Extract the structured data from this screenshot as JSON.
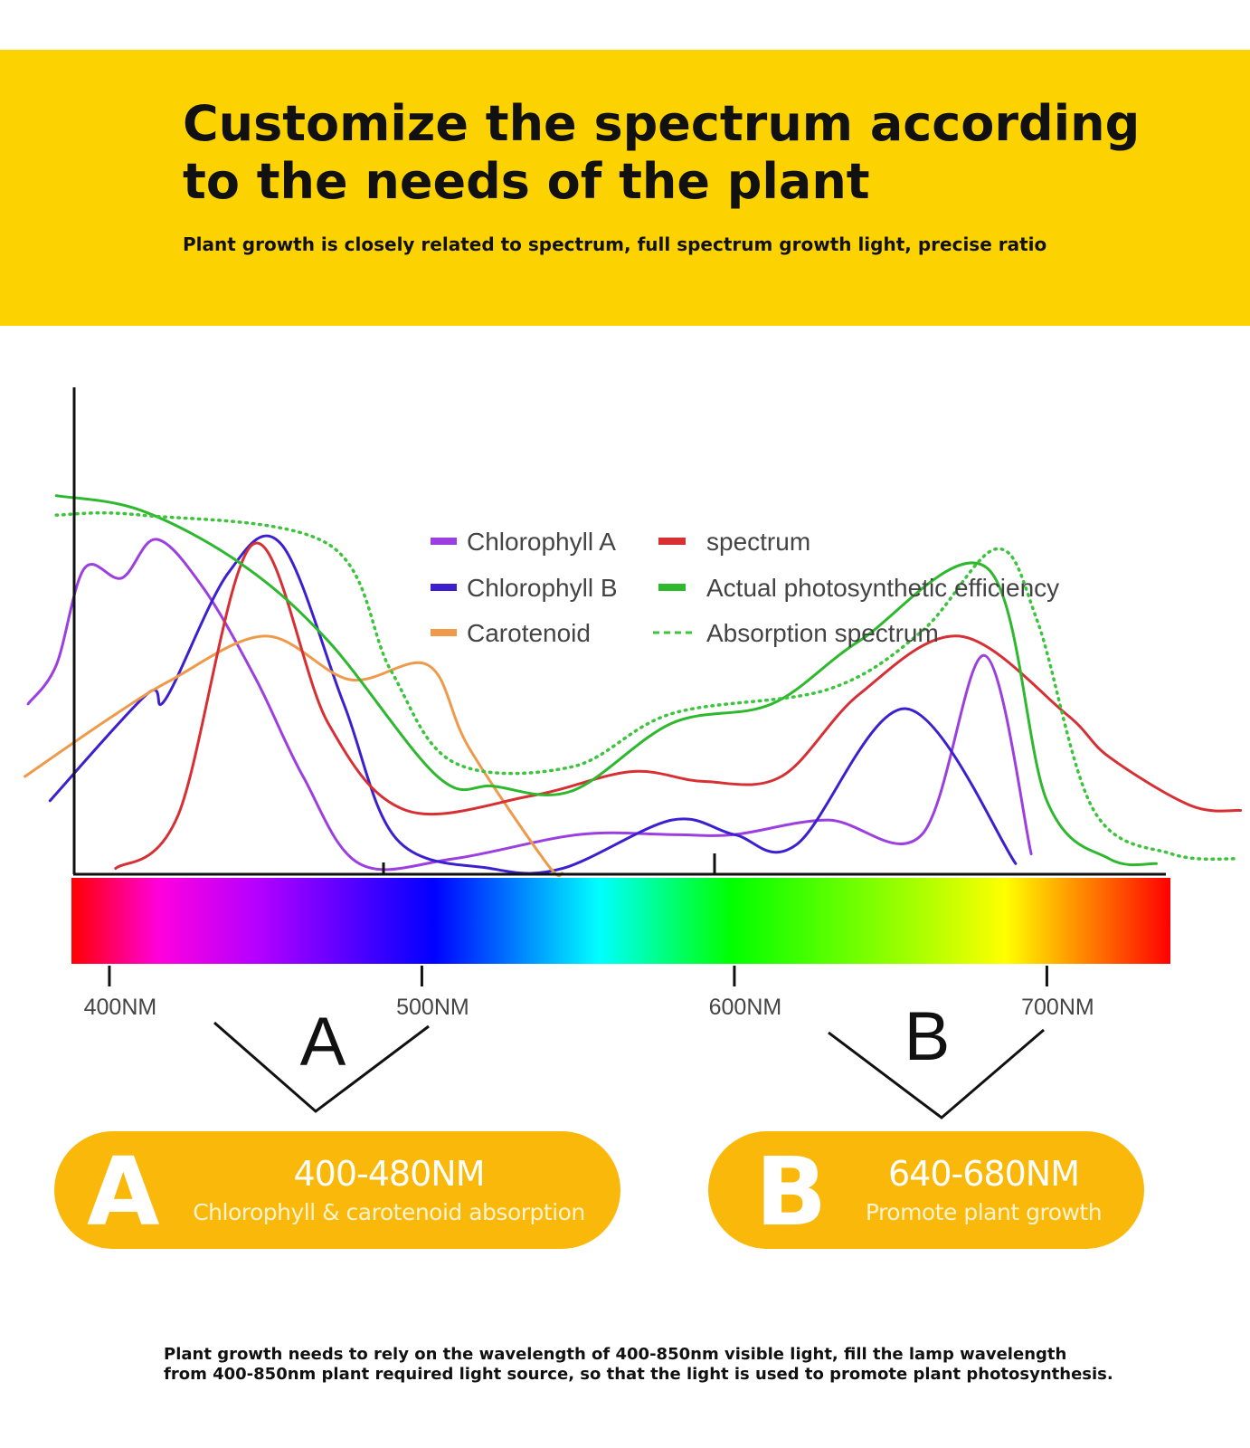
{
  "header": {
    "title": "Customize the spectrum according to the needs of the plant",
    "subtitle": "Plant growth is closely related to spectrum, full spectrum growth light, precise ratio"
  },
  "colors": {
    "banner": "#FCD200",
    "pill": "#F9B80A",
    "chlorophyll_a": "#9B3FE0",
    "chlorophyll_b": "#3C20D0",
    "carotenoid": "#EE9A4A",
    "spectrum": "#D62F34",
    "photosynthetic": "#2EB82E",
    "absorption": "#3CC43C"
  },
  "chart_data": {
    "type": "line",
    "title": "",
    "xlabel": "",
    "ylabel": "",
    "x_unit": "nm",
    "xlim": [
      365,
      765
    ],
    "ylim": [
      0,
      100
    ],
    "x_ticks": [
      400,
      500,
      600,
      700
    ],
    "x_tick_labels": [
      "400NM",
      "500NM",
      "600NM",
      "700NM"
    ],
    "grid": false,
    "legend_position": "top-center",
    "legend": [
      {
        "label": "Chlorophyll A",
        "marker": "bar",
        "color_key": "chlorophyll_a"
      },
      {
        "label": "spectrum",
        "marker": "bar",
        "color_key": "spectrum"
      },
      {
        "label": "Chlorophyll B",
        "marker": "bar",
        "color_key": "chlorophyll_b"
      },
      {
        "label": "Actual photosynthetic efficiency",
        "marker": "bar",
        "color_key": "photosynthetic"
      },
      {
        "label": "Carotenoid",
        "marker": "bar",
        "color_key": "carotenoid"
      },
      {
        "label": "Absorption spectrum",
        "marker": "dash",
        "color_key": "absorption"
      }
    ],
    "series": [
      {
        "name": "Chlorophyll A",
        "color_key": "chlorophyll_a",
        "dash": false,
        "points": [
          [
            374,
            35
          ],
          [
            383,
            43
          ],
          [
            392,
            63
          ],
          [
            404,
            61
          ],
          [
            415,
            69
          ],
          [
            430,
            59
          ],
          [
            447,
            40
          ],
          [
            462,
            20
          ],
          [
            480,
            2
          ],
          [
            510,
            3
          ],
          [
            550,
            8
          ],
          [
            580,
            8
          ],
          [
            600,
            8
          ],
          [
            630,
            11
          ],
          [
            660,
            8
          ],
          [
            680,
            45
          ],
          [
            695,
            4
          ]
        ]
      },
      {
        "name": "Chlorophyll B",
        "color_key": "chlorophyll_b",
        "dash": false,
        "points": [
          [
            381,
            15
          ],
          [
            412,
            37
          ],
          [
            418,
            36
          ],
          [
            438,
            62
          ],
          [
            455,
            68
          ],
          [
            475,
            35
          ],
          [
            492,
            7
          ],
          [
            522,
            1
          ],
          [
            545,
            1
          ],
          [
            580,
            11
          ],
          [
            600,
            8
          ],
          [
            620,
            6
          ],
          [
            655,
            34
          ],
          [
            690,
            2
          ]
        ]
      },
      {
        "name": "Carotenoid",
        "color_key": "carotenoid",
        "dash": false,
        "points": [
          [
            373,
            20
          ],
          [
            400,
            32
          ],
          [
            420,
            40
          ],
          [
            450,
            49
          ],
          [
            477,
            40
          ],
          [
            502,
            43
          ],
          [
            515,
            26
          ],
          [
            540,
            2
          ],
          [
            545,
            0
          ]
        ]
      },
      {
        "name": "spectrum",
        "color_key": "spectrum",
        "dash": false,
        "points": [
          [
            402,
            1
          ],
          [
            422,
            12
          ],
          [
            446,
            68
          ],
          [
            470,
            31
          ],
          [
            495,
            13
          ],
          [
            535,
            16
          ],
          [
            567,
            21
          ],
          [
            590,
            19
          ],
          [
            615,
            20
          ],
          [
            640,
            37
          ],
          [
            672,
            49
          ],
          [
            706,
            33
          ],
          [
            720,
            24
          ],
          [
            746,
            14
          ],
          [
            762,
            13
          ]
        ]
      },
      {
        "name": "Actual photosynthetic efficiency",
        "color_key": "photosynthetic",
        "dash": false,
        "points": [
          [
            383,
            78
          ],
          [
            410,
            75
          ],
          [
            442,
            64
          ],
          [
            470,
            48
          ],
          [
            505,
            20
          ],
          [
            523,
            18
          ],
          [
            548,
            17
          ],
          [
            580,
            31
          ],
          [
            612,
            35
          ],
          [
            640,
            48
          ],
          [
            681,
            63
          ],
          [
            700,
            15
          ],
          [
            720,
            3
          ],
          [
            735,
            2
          ]
        ]
      },
      {
        "name": "Absorption spectrum",
        "color_key": "absorption",
        "dash": true,
        "points": [
          [
            383,
            74
          ],
          [
            410,
            74
          ],
          [
            470,
            68
          ],
          [
            490,
            42
          ],
          [
            510,
            23
          ],
          [
            548,
            22
          ],
          [
            580,
            33
          ],
          [
            630,
            38
          ],
          [
            660,
            50
          ],
          [
            684,
            67
          ],
          [
            697,
            52
          ],
          [
            715,
            13
          ],
          [
            740,
            4
          ],
          [
            761,
            3
          ]
        ]
      }
    ]
  },
  "regions": {
    "a": {
      "letter": "A",
      "range": "400-480NM",
      "desc": "Chlorophyll & carotenoid absorption"
    },
    "b": {
      "letter": "B",
      "range": "640-680NM",
      "desc": "Promote plant growth"
    }
  },
  "footer": {
    "text": "Plant growth needs to rely on the wavelength of 400-850nm visible light, fill the lamp wavelength from 400-850nm plant required light source, so that the light is used to promote plant photosynthesis."
  }
}
